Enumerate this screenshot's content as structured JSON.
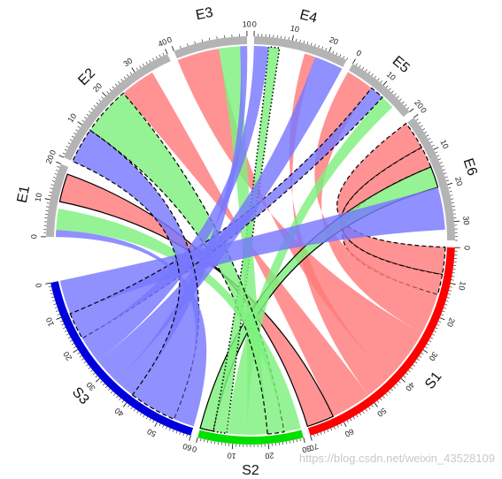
{
  "chart_data": {
    "type": "chord",
    "title": "",
    "grid": false,
    "sectors": [
      {
        "name": "S1",
        "max": 70,
        "tick_labels": [
          "0",
          "10",
          "20",
          "30",
          "40",
          "50",
          "60",
          "70"
        ],
        "color": "#ff0000"
      },
      {
        "name": "S2",
        "max": 30,
        "tick_labels": [
          "0",
          "10",
          "20",
          "30"
        ],
        "color": "#00e000"
      },
      {
        "name": "S3",
        "max": 60,
        "tick_labels": [
          "0",
          "10",
          "20",
          "30",
          "40",
          "50",
          "60"
        ],
        "color": "#0000dd"
      },
      {
        "name": "E1",
        "max": 20,
        "tick_labels": [
          "0",
          "10",
          "20"
        ],
        "color": "#b4b4b4"
      },
      {
        "name": "E2",
        "max": 40,
        "tick_labels": [
          "0",
          "10",
          "20",
          "30",
          "40"
        ],
        "color": "#b4b4b4"
      },
      {
        "name": "E3",
        "max": 10,
        "tick_labels": [
          "0",
          "10"
        ],
        "color": "#b4b4b4"
      },
      {
        "name": "E4",
        "max": 25,
        "tick_labels": [
          "0",
          "10",
          "20"
        ],
        "color": "#b4b4b4"
      },
      {
        "name": "E5",
        "max": 20,
        "tick_labels": [
          "0",
          "10",
          "20"
        ],
        "color": "#b4b4b4"
      },
      {
        "name": "E6",
        "max": 35,
        "tick_labels": [
          "0",
          "10",
          "20",
          "30"
        ],
        "color": "#b4b4b4"
      }
    ],
    "link_colors": {
      "S1": "#ff7b7b",
      "S2": "#7ef07e",
      "S3": "#7878ff"
    },
    "links": [
      {
        "from": "S1",
        "from_range": [
          0,
          8
        ],
        "to": "E6",
        "to_range": [
          0,
          8
        ],
        "border": "dashed"
      },
      {
        "from": "S1",
        "from_range": [
          8,
          14
        ],
        "to": "E6",
        "to_range": [
          8,
          14
        ],
        "border": "dashed"
      },
      {
        "from": "S1",
        "from_range": [
          14,
          26
        ],
        "to": "E5",
        "to_range": [
          0,
          8
        ],
        "border": "none"
      },
      {
        "from": "S1",
        "from_range": [
          26,
          42
        ],
        "to": "E3",
        "to_range": [
          0,
          6
        ],
        "border": "none"
      },
      {
        "from": "S1",
        "from_range": [
          42,
          50
        ],
        "to": "E4",
        "to_range": [
          14,
          17
        ],
        "border": "none"
      },
      {
        "from": "S1",
        "from_range": [
          50,
          62
        ],
        "to": "E2",
        "to_range": [
          24,
          34
        ],
        "border": "none"
      },
      {
        "from": "S1",
        "from_range": [
          62,
          70
        ],
        "to": "E1",
        "to_range": [
          10,
          18
        ],
        "border": "solid"
      },
      {
        "from": "S2",
        "from_range": [
          0,
          4
        ],
        "to": "E6",
        "to_range": [
          14,
          20
        ],
        "border": "solid"
      },
      {
        "from": "S2",
        "from_range": [
          4,
          8
        ],
        "to": "E4",
        "to_range": [
          4,
          7
        ],
        "border": "dotted"
      },
      {
        "from": "S2",
        "from_range": [
          8,
          14
        ],
        "to": "E5",
        "to_range": [
          12,
          16
        ],
        "border": "none"
      },
      {
        "from": "S2",
        "from_range": [
          14,
          20
        ],
        "to": "E3",
        "to_range": [
          6,
          9
        ],
        "border": "none"
      },
      {
        "from": "S2",
        "from_range": [
          20,
          25
        ],
        "to": "E2",
        "to_range": [
          10,
          24
        ],
        "border": "dashed"
      },
      {
        "from": "S2",
        "from_range": [
          25,
          30
        ],
        "to": "E1",
        "to_range": [
          2,
          8
        ],
        "border": "none"
      },
      {
        "from": "S3",
        "from_range": [
          0,
          10
        ],
        "to": "E6",
        "to_range": [
          20,
          32
        ],
        "border": "none"
      },
      {
        "from": "S3",
        "from_range": [
          10,
          18
        ],
        "to": "E5",
        "to_range": [
          8,
          12
        ],
        "border": "dashed"
      },
      {
        "from": "S3",
        "from_range": [
          18,
          26
        ],
        "to": "E4",
        "to_range": [
          0,
          4
        ],
        "border": "none"
      },
      {
        "from": "S3",
        "from_range": [
          26,
          34
        ],
        "to": "E4",
        "to_range": [
          17,
          25
        ],
        "border": "none"
      },
      {
        "from": "S3",
        "from_range": [
          34,
          40
        ],
        "to": "E3",
        "to_range": [
          9,
          10
        ],
        "border": "none"
      },
      {
        "from": "S3",
        "from_range": [
          40,
          54
        ],
        "to": "E2",
        "to_range": [
          0,
          10
        ],
        "border": "dashed"
      },
      {
        "from": "S3",
        "from_range": [
          54,
          60
        ],
        "to": "E1",
        "to_range": [
          0,
          2
        ],
        "border": "none"
      }
    ]
  },
  "watermark": "https://blog.csdn.net/weixin_43528109"
}
